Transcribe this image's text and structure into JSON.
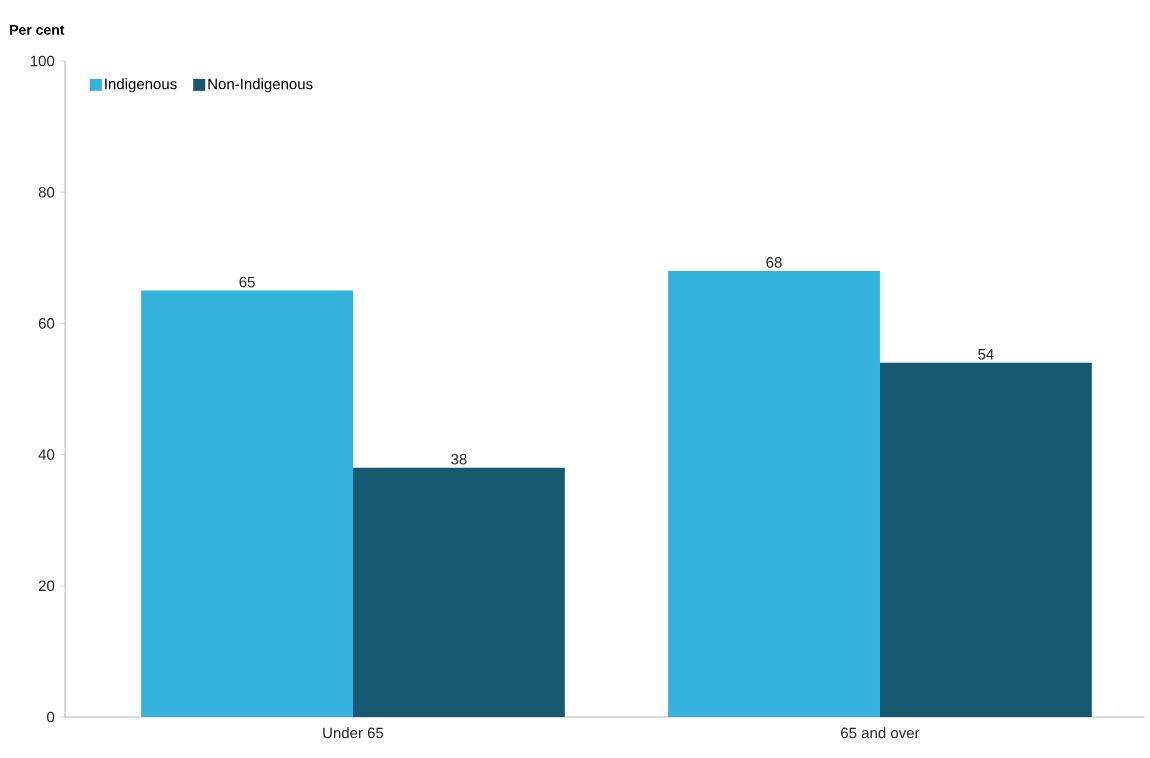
{
  "chart_data": {
    "type": "bar",
    "ylabel": "Per cent",
    "categories": [
      "Under 65",
      "65 and over"
    ],
    "series": [
      {
        "name": "Indigenous",
        "color": "#33b2dc",
        "values": [
          65,
          68
        ]
      },
      {
        "name": "Non-Indigenous",
        "color": "#175a70",
        "values": [
          38,
          54
        ]
      }
    ],
    "ylim": [
      0,
      100
    ],
    "yticks": [
      0,
      20,
      40,
      60,
      80,
      100
    ],
    "data_labels": true,
    "legend": "top left",
    "grid": false
  }
}
